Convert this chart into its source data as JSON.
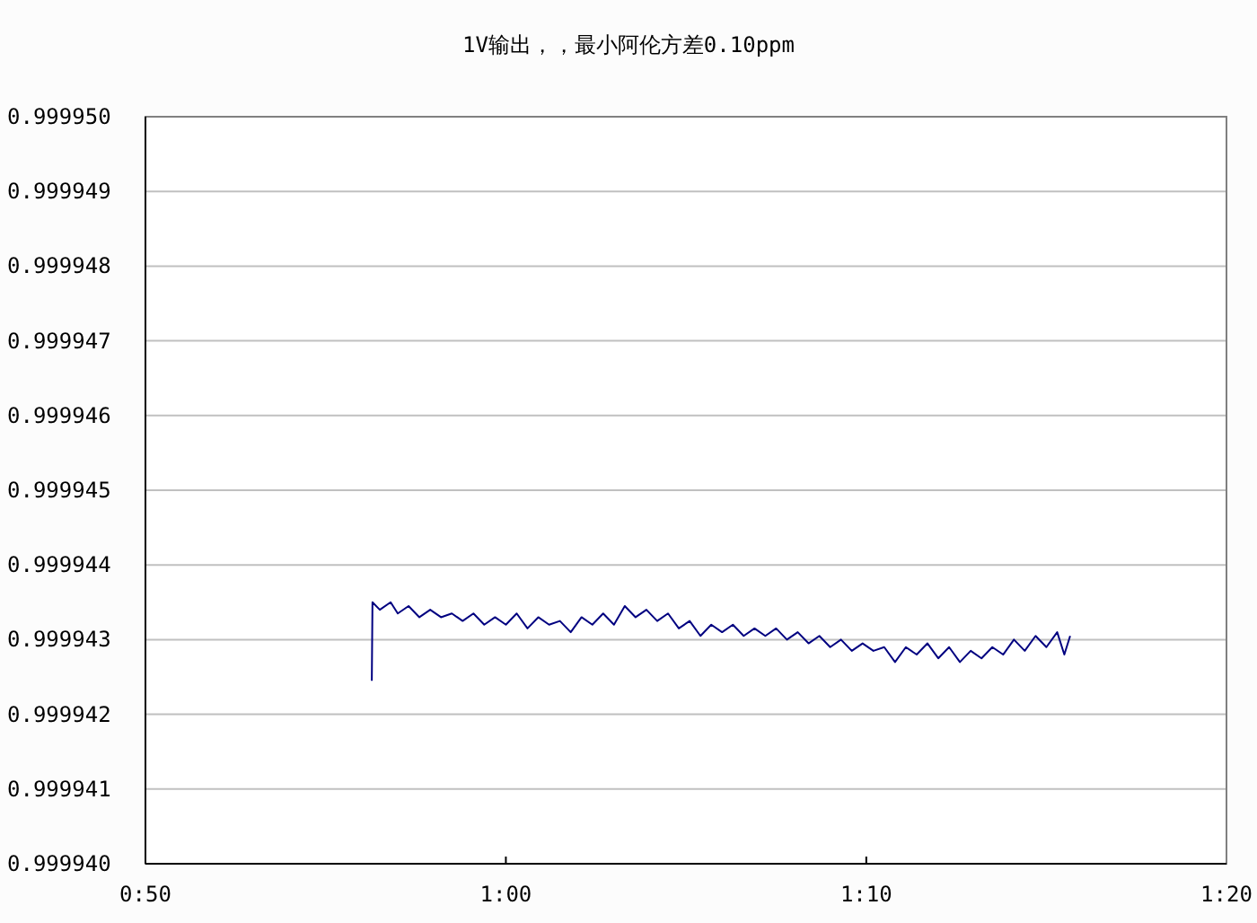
{
  "chart_data": {
    "type": "line",
    "title": "1V输出，，最小阿伦方差0.10ppm",
    "x": [
      0.938,
      0.9383,
      0.9417,
      0.9467,
      0.95,
      0.955,
      0.96,
      0.965,
      0.97,
      0.975,
      0.98,
      0.985,
      0.99,
      0.995,
      1.0,
      1.005,
      1.01,
      1.015,
      1.02,
      1.025,
      1.03,
      1.035,
      1.04,
      1.045,
      1.05,
      1.055,
      1.06,
      1.065,
      1.07,
      1.075,
      1.08,
      1.085,
      1.09,
      1.095,
      1.1,
      1.105,
      1.11,
      1.115,
      1.12,
      1.125,
      1.13,
      1.135,
      1.14,
      1.145,
      1.15,
      1.155,
      1.16,
      1.165,
      1.17,
      1.175,
      1.18,
      1.185,
      1.19,
      1.195,
      1.2,
      1.205,
      1.21,
      1.215,
      1.22,
      1.225,
      1.23,
      1.235,
      1.24,
      1.245,
      1.25,
      1.255,
      1.2583,
      1.261
    ],
    "series": [
      {
        "color": "#000080",
        "values": [
          0.99994245,
          0.9999435,
          0.9999434,
          0.9999435,
          0.99994335,
          0.99994345,
          0.9999433,
          0.9999434,
          0.9999433,
          0.99994335,
          0.99994325,
          0.99994335,
          0.9999432,
          0.9999433,
          0.9999432,
          0.99994335,
          0.99994315,
          0.9999433,
          0.9999432,
          0.99994325,
          0.9999431,
          0.9999433,
          0.9999432,
          0.99994335,
          0.9999432,
          0.99994345,
          0.9999433,
          0.9999434,
          0.99994325,
          0.99994335,
          0.99994315,
          0.99994325,
          0.99994305,
          0.9999432,
          0.9999431,
          0.9999432,
          0.99994305,
          0.99994315,
          0.99994305,
          0.99994315,
          0.999943,
          0.9999431,
          0.99994295,
          0.99994305,
          0.9999429,
          0.999943,
          0.99994285,
          0.99994295,
          0.99994285,
          0.9999429,
          0.9999427,
          0.9999429,
          0.9999428,
          0.99994295,
          0.99994275,
          0.9999429,
          0.9999427,
          0.99994285,
          0.99994275,
          0.9999429,
          0.9999428,
          0.999943,
          0.99994285,
          0.99994305,
          0.9999429,
          0.9999431,
          0.9999428,
          0.99994305
        ]
      }
    ],
    "xlim": [
      0.8333,
      1.3333
    ],
    "xticks": [
      {
        "value": 0.8333,
        "label": "0:50"
      },
      {
        "value": 1.0,
        "label": "1:00"
      },
      {
        "value": 1.1667,
        "label": "1:10"
      },
      {
        "value": 1.3333,
        "label": "1:20"
      }
    ],
    "ylim": [
      0.99994,
      0.99995
    ],
    "yticks": [
      {
        "value": 0.99994,
        "label": "0.999940"
      },
      {
        "value": 0.999941,
        "label": "0.999941"
      },
      {
        "value": 0.999942,
        "label": "0.999942"
      },
      {
        "value": 0.999943,
        "label": "0.999943"
      },
      {
        "value": 0.999944,
        "label": "0.999944"
      },
      {
        "value": 0.999945,
        "label": "0.999945"
      },
      {
        "value": 0.999946,
        "label": "0.999946"
      },
      {
        "value": 0.999947,
        "label": "0.999947"
      },
      {
        "value": 0.999948,
        "label": "0.999948"
      },
      {
        "value": 0.999949,
        "label": "0.999949"
      },
      {
        "value": 0.99995,
        "label": "0.999950"
      }
    ],
    "grid": "y",
    "marker": "none",
    "line_style": "solid"
  }
}
